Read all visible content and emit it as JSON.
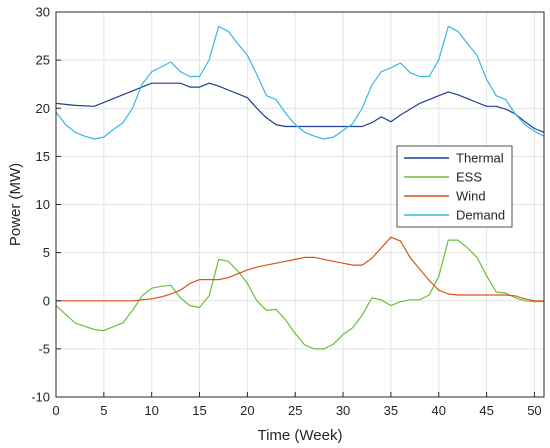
{
  "chart_data": {
    "type": "line",
    "title": "",
    "xlabel": "Time (Week)",
    "ylabel": "Power (MW)",
    "xlim": [
      0,
      51
    ],
    "ylim": [
      -10,
      30
    ],
    "xticks": [
      "0",
      "5",
      "10",
      "15",
      "20",
      "25",
      "30",
      "35",
      "40",
      "45",
      "50"
    ],
    "yticks": [
      "-10",
      "-5",
      "0",
      "5",
      "10",
      "15",
      "20",
      "25",
      "30"
    ],
    "grid": true,
    "legend_position": "right",
    "series": [
      {
        "name": "Thermal",
        "color": "#1f3f8f",
        "x": [
          0,
          2,
          4,
          6,
          8,
          10,
          11,
          12,
          13,
          14,
          15,
          16,
          17,
          18,
          19,
          20,
          21,
          22,
          23,
          24,
          25,
          26,
          27,
          28,
          29,
          30,
          31,
          32,
          33,
          34,
          35,
          36,
          37,
          38,
          39,
          40,
          41,
          42,
          43,
          44,
          45,
          46,
          47,
          48,
          49,
          50,
          51
        ],
        "y": [
          20.5,
          20.3,
          20.2,
          21.0,
          21.8,
          22.6,
          22.6,
          22.6,
          22.6,
          22.2,
          22.2,
          22.6,
          22.3,
          21.9,
          21.5,
          21.1,
          20.0,
          19.0,
          18.3,
          18.1,
          18.1,
          18.1,
          18.1,
          18.1,
          18.1,
          18.1,
          18.1,
          18.1,
          18.5,
          19.1,
          18.6,
          19.3,
          19.9,
          20.5,
          20.9,
          21.3,
          21.7,
          21.4,
          21.0,
          20.6,
          20.2,
          20.2,
          19.9,
          19.4,
          18.6,
          17.9,
          17.5
        ]
      },
      {
        "name": "ESS",
        "color": "#6abf3a",
        "x": [
          0,
          2,
          4,
          5,
          6,
          7,
          8,
          9,
          10,
          11,
          12,
          13,
          14,
          15,
          16,
          17,
          18,
          19,
          20,
          21,
          22,
          23,
          24,
          25,
          26,
          27,
          28,
          29,
          30,
          31,
          32,
          33,
          34,
          35,
          36,
          37,
          38,
          39,
          40,
          41,
          42,
          43,
          44,
          45,
          46,
          47,
          48,
          49,
          50,
          51
        ],
        "y": [
          -0.5,
          -2.3,
          -3.0,
          -3.1,
          -2.7,
          -2.3,
          -1.0,
          0.5,
          1.3,
          1.5,
          1.6,
          0.3,
          -0.5,
          -0.7,
          0.5,
          4.3,
          4.1,
          3.1,
          1.8,
          0.0,
          -1.0,
          -0.9,
          -2.0,
          -3.4,
          -4.6,
          -5.0,
          -5.0,
          -4.5,
          -3.5,
          -2.8,
          -1.5,
          0.3,
          0.1,
          -0.5,
          -0.1,
          0.1,
          0.1,
          0.6,
          2.5,
          6.3,
          6.3,
          5.5,
          4.5,
          2.6,
          0.9,
          0.8,
          0.3,
          0.0,
          -0.1,
          -0.1
        ]
      },
      {
        "name": "Wind",
        "color": "#d9541a",
        "x": [
          0,
          2,
          4,
          6,
          8,
          10,
          11,
          12,
          13,
          14,
          15,
          16,
          17,
          18,
          19,
          20,
          21,
          22,
          23,
          24,
          25,
          26,
          27,
          28,
          29,
          30,
          31,
          32,
          33,
          34,
          35,
          36,
          37,
          38,
          39,
          40,
          41,
          42,
          43,
          44,
          45,
          46,
          47,
          48,
          49,
          50,
          51
        ],
        "y": [
          0.0,
          0.0,
          0.0,
          0.0,
          0.0,
          0.2,
          0.4,
          0.7,
          1.1,
          1.8,
          2.2,
          2.2,
          2.2,
          2.4,
          2.8,
          3.2,
          3.5,
          3.7,
          3.9,
          4.1,
          4.3,
          4.5,
          4.5,
          4.3,
          4.1,
          3.9,
          3.7,
          3.7,
          4.4,
          5.5,
          6.6,
          6.2,
          4.5,
          3.3,
          2.1,
          1.1,
          0.7,
          0.6,
          0.6,
          0.6,
          0.6,
          0.6,
          0.6,
          0.5,
          0.2,
          0.0,
          0.0
        ]
      },
      {
        "name": "Demand",
        "color": "#35b9e6",
        "x": [
          0,
          1,
          2,
          3,
          4,
          5,
          6,
          7,
          8,
          9,
          10,
          11,
          12,
          13,
          14,
          15,
          16,
          17,
          18,
          19,
          20,
          21,
          22,
          23,
          24,
          25,
          26,
          27,
          28,
          29,
          30,
          31,
          32,
          33,
          34,
          35,
          36,
          37,
          38,
          39,
          40,
          41,
          42,
          43,
          44,
          45,
          46,
          47,
          48,
          49,
          50,
          51
        ],
        "y": [
          19.6,
          18.3,
          17.5,
          17.1,
          16.8,
          17.0,
          17.8,
          18.5,
          20.0,
          22.5,
          23.8,
          24.3,
          24.8,
          23.8,
          23.3,
          23.3,
          25.0,
          28.5,
          28.0,
          26.7,
          25.5,
          23.5,
          21.3,
          20.9,
          19.5,
          18.3,
          17.5,
          17.1,
          16.8,
          17.0,
          17.7,
          18.4,
          20.0,
          22.4,
          23.8,
          24.2,
          24.7,
          23.7,
          23.3,
          23.3,
          25.0,
          28.5,
          28.0,
          26.7,
          25.5,
          23.0,
          21.3,
          20.9,
          19.4,
          18.3,
          17.6,
          17.1
        ]
      }
    ]
  }
}
